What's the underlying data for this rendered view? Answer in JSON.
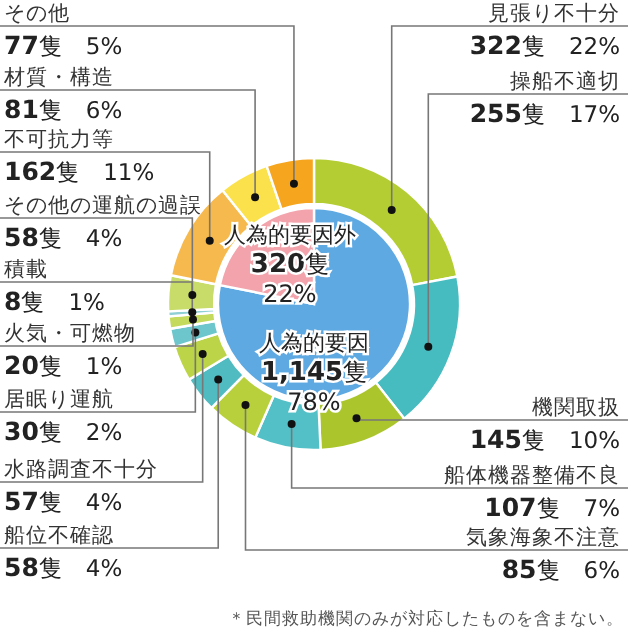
{
  "chart_data": [
    {
      "type": "pie",
      "categories": [
        "人為的要因",
        "人為的要因外"
      ],
      "values": [
        1145,
        320
      ],
      "colors": [
        "#5fa9e2",
        "#f2a3ab"
      ],
      "value_labels": [
        "**1,145**隻 78%",
        "**320**隻 22%"
      ]
    },
    {
      "type": "donut",
      "categories": [
        "見張り不十分",
        "操船不適切",
        "機関取扱",
        "船体機器整備不良",
        "気象海象不注意",
        "船位不確認",
        "水路調査不十分",
        "居眠り運航",
        "火気・可燃物",
        "積載",
        "その他の運航の過誤",
        "不可抗力等",
        "材質・構造",
        "その他"
      ],
      "values": [
        322,
        255,
        145,
        107,
        85,
        58,
        57,
        30,
        20,
        8,
        58,
        162,
        81,
        77
      ],
      "colors": [
        "#b4cd32",
        "#46bcc0",
        "#aac62c",
        "#52c0c6",
        "#b8d03c",
        "#50bcc2",
        "#bcd448",
        "#6cc6cc",
        "#c4da5c",
        "#8fd0d4",
        "#c8dc6a",
        "#f6b94e",
        "#fbe14c",
        "#f5a51e"
      ],
      "value_labels": [
        "**322**隻 22%",
        "**255**隻 17%",
        "**145**隻 10%",
        "**107**隻 7%",
        "**85**隻 6%",
        "**58**隻 4%",
        "**57**隻 4%",
        "**30**隻 2%",
        "**20**隻 1%",
        "**8**隻 1%",
        "**58**隻 4%",
        "**162**隻 11%",
        "**81**隻 6%",
        "**77**隻 5%"
      ],
      "annotations": [
        "＊民間救助機関のみが対応したものを含まない。"
      ]
    }
  ]
}
